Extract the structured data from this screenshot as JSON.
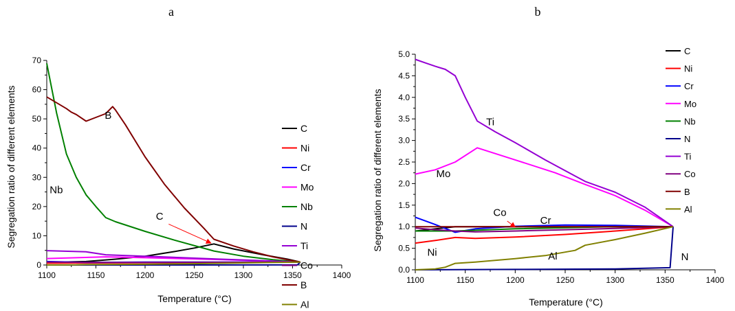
{
  "chart_data": [
    {
      "type": "line",
      "panel_label": "a",
      "xlabel": "Temperature (°C)",
      "ylabel": "Segregation ratio of different elements",
      "xlim": [
        1100,
        1400
      ],
      "ylim": [
        0,
        70
      ],
      "xticks": [
        1100,
        1150,
        1200,
        1250,
        1300,
        1350,
        1400
      ],
      "yticks": [
        0,
        10,
        20,
        30,
        40,
        50,
        60,
        70
      ],
      "legend_position": "right",
      "series": [
        {
          "name": "C",
          "color": "#000000",
          "points": [
            [
              1100,
              0.9
            ],
            [
              1140,
              1.2
            ],
            [
              1170,
              2.0
            ],
            [
              1200,
              3.0
            ],
            [
              1230,
              4.6
            ],
            [
              1250,
              5.8
            ],
            [
              1270,
              7.2
            ],
            [
              1290,
              5.5
            ],
            [
              1320,
              3.5
            ],
            [
              1345,
              2.0
            ],
            [
              1358,
              1.0
            ]
          ]
        },
        {
          "name": "Ni",
          "color": "#ff0000",
          "points": [
            [
              1100,
              0.6
            ],
            [
              1140,
              0.7
            ],
            [
              1200,
              0.8
            ],
            [
              1260,
              0.9
            ],
            [
              1358,
              1.0
            ]
          ]
        },
        {
          "name": "Cr",
          "color": "#0000ff",
          "points": [
            [
              1100,
              1.2
            ],
            [
              1140,
              0.9
            ],
            [
              1200,
              1.0
            ],
            [
              1260,
              1.0
            ],
            [
              1358,
              1.0
            ]
          ]
        },
        {
          "name": "Mo",
          "color": "#ff00ff",
          "points": [
            [
              1100,
              2.2
            ],
            [
              1160,
              2.8
            ],
            [
              1200,
              2.5
            ],
            [
              1270,
              1.9
            ],
            [
              1358,
              1.0
            ]
          ]
        },
        {
          "name": "Nb",
          "color": "#008000",
          "points": [
            [
              1100,
              69
            ],
            [
              1110,
              52
            ],
            [
              1120,
              38
            ],
            [
              1130,
              30
            ],
            [
              1140,
              24
            ],
            [
              1150,
              20
            ],
            [
              1160,
              16.2
            ],
            [
              1170,
              14.8
            ],
            [
              1200,
              11.5
            ],
            [
              1230,
              8.5
            ],
            [
              1270,
              4.8
            ],
            [
              1300,
              3.0
            ],
            [
              1330,
              1.8
            ],
            [
              1358,
              1.0
            ]
          ]
        },
        {
          "name": "N",
          "color": "#00008b",
          "points": [
            [
              1100,
              0.0
            ],
            [
              1200,
              0.01
            ],
            [
              1300,
              0.02
            ],
            [
              1355,
              0.05
            ],
            [
              1358,
              1.0
            ]
          ]
        },
        {
          "name": "Ti",
          "color": "#9400d3",
          "points": [
            [
              1100,
              4.9
            ],
            [
              1140,
              4.5
            ],
            [
              1160,
              3.5
            ],
            [
              1200,
              3.0
            ],
            [
              1270,
              2.1
            ],
            [
              1320,
              1.5
            ],
            [
              1358,
              1.0
            ]
          ]
        },
        {
          "name": "Co",
          "color": "#800080",
          "points": [
            [
              1100,
              1.0
            ],
            [
              1140,
              0.9
            ],
            [
              1200,
              0.9
            ],
            [
              1270,
              0.95
            ],
            [
              1358,
              1.0
            ]
          ]
        },
        {
          "name": "B",
          "color": "#800000",
          "points": [
            [
              1100,
              57.5
            ],
            [
              1110,
              55.5
            ],
            [
              1120,
              53.5
            ],
            [
              1125,
              52.3
            ],
            [
              1130,
              51.5
            ],
            [
              1140,
              49.2
            ],
            [
              1150,
              50.5
            ],
            [
              1160,
              51.8
            ],
            [
              1167,
              54.2
            ],
            [
              1170,
              53.0
            ],
            [
              1180,
              48.0
            ],
            [
              1200,
              37.0
            ],
            [
              1220,
              27.5
            ],
            [
              1240,
              19.5
            ],
            [
              1260,
              12.5
            ],
            [
              1270,
              8.8
            ],
            [
              1290,
              6.5
            ],
            [
              1310,
              4.5
            ],
            [
              1330,
              2.8
            ],
            [
              1345,
              1.8
            ],
            [
              1358,
              1.0
            ]
          ]
        },
        {
          "name": "Al",
          "color": "#808000",
          "points": [
            [
              1100,
              0.0
            ],
            [
              1130,
              0.05
            ],
            [
              1140,
              0.15
            ],
            [
              1200,
              0.25
            ],
            [
              1250,
              0.45
            ],
            [
              1270,
              0.57
            ],
            [
              1358,
              1.0
            ]
          ]
        }
      ],
      "annotations": [
        {
          "text": "B",
          "x": 1159,
          "y": 50
        },
        {
          "text": "Nb",
          "x": 1103,
          "y": 24.5
        },
        {
          "text": "C",
          "x": 1211,
          "y": 15.5
        }
      ],
      "arrows": [
        {
          "from": [
            1224,
            14
          ],
          "to": [
            1267,
            7.5
          ],
          "color": "#ff0000"
        }
      ]
    },
    {
      "type": "line",
      "panel_label": "b",
      "xlabel": "Temperature (°C)",
      "ylabel": "Segregation ratio of different elements",
      "xlim": [
        1100,
        1400
      ],
      "ylim": [
        0,
        5.0
      ],
      "xticks": [
        1100,
        1150,
        1200,
        1250,
        1300,
        1350,
        1400
      ],
      "yticks": [
        0.0,
        0.5,
        1.0,
        1.5,
        2.0,
        2.5,
        3.0,
        3.5,
        4.0,
        4.5,
        5.0
      ],
      "legend_position": "right",
      "series": [
        {
          "name": "C",
          "color": "#000000",
          "points": [
            [
              1100,
              0.9
            ],
            [
              1140,
              1.0
            ],
            [
              1200,
              1.0
            ],
            [
              1300,
              1.0
            ],
            [
              1358,
              1.0
            ]
          ]
        },
        {
          "name": "Ni",
          "color": "#ff0000",
          "points": [
            [
              1100,
              0.62
            ],
            [
              1120,
              0.68
            ],
            [
              1140,
              0.75
            ],
            [
              1160,
              0.73
            ],
            [
              1200,
              0.76
            ],
            [
              1250,
              0.82
            ],
            [
              1300,
              0.9
            ],
            [
              1358,
              1.0
            ]
          ]
        },
        {
          "name": "Cr",
          "color": "#0000ff",
          "points": [
            [
              1100,
              1.22
            ],
            [
              1120,
              1.05
            ],
            [
              1140,
              0.87
            ],
            [
              1160,
              0.95
            ],
            [
              1200,
              1.01
            ],
            [
              1250,
              1.04
            ],
            [
              1300,
              1.03
            ],
            [
              1358,
              1.0
            ]
          ]
        },
        {
          "name": "Mo",
          "color": "#ff00ff",
          "points": [
            [
              1100,
              2.22
            ],
            [
              1120,
              2.32
            ],
            [
              1140,
              2.5
            ],
            [
              1162,
              2.83
            ],
            [
              1200,
              2.55
            ],
            [
              1240,
              2.25
            ],
            [
              1270,
              1.98
            ],
            [
              1300,
              1.72
            ],
            [
              1330,
              1.38
            ],
            [
              1358,
              1.0
            ]
          ]
        },
        {
          "name": "Nb",
          "color": "#008000",
          "points": [
            [
              1100,
              0.9
            ],
            [
              1140,
              0.9
            ],
            [
              1200,
              0.95
            ],
            [
              1300,
              1.0
            ],
            [
              1358,
              1.0
            ]
          ]
        },
        {
          "name": "N",
          "color": "#00008b",
          "points": [
            [
              1100,
              0.0
            ],
            [
              1200,
              0.01
            ],
            [
              1300,
              0.02
            ],
            [
              1355,
              0.05
            ],
            [
              1358,
              1.0
            ]
          ]
        },
        {
          "name": "Ti",
          "color": "#9400d3",
          "points": [
            [
              1100,
              4.88
            ],
            [
              1110,
              4.8
            ],
            [
              1120,
              4.72
            ],
            [
              1130,
              4.65
            ],
            [
              1140,
              4.5
            ],
            [
              1150,
              4.0
            ],
            [
              1162,
              3.45
            ],
            [
              1180,
              3.2
            ],
            [
              1200,
              2.95
            ],
            [
              1230,
              2.55
            ],
            [
              1270,
              2.05
            ],
            [
              1300,
              1.8
            ],
            [
              1330,
              1.45
            ],
            [
              1358,
              1.0
            ]
          ]
        },
        {
          "name": "Co",
          "color": "#800080",
          "points": [
            [
              1100,
              0.97
            ],
            [
              1120,
              0.93
            ],
            [
              1140,
              0.9
            ],
            [
              1160,
              0.88
            ],
            [
              1200,
              0.9
            ],
            [
              1250,
              0.93
            ],
            [
              1300,
              0.96
            ],
            [
              1358,
              1.0
            ]
          ]
        },
        {
          "name": "B",
          "color": "#800000",
          "points": [
            [
              1100,
              1.0
            ],
            [
              1200,
              1.0
            ],
            [
              1300,
              1.0
            ],
            [
              1358,
              1.0
            ]
          ]
        },
        {
          "name": "Al",
          "color": "#808000",
          "points": [
            [
              1100,
              0.0
            ],
            [
              1120,
              0.02
            ],
            [
              1130,
              0.06
            ],
            [
              1140,
              0.15
            ],
            [
              1160,
              0.18
            ],
            [
              1200,
              0.26
            ],
            [
              1230,
              0.33
            ],
            [
              1260,
              0.45
            ],
            [
              1270,
              0.57
            ],
            [
              1300,
              0.7
            ],
            [
              1330,
              0.85
            ],
            [
              1358,
              1.0
            ]
          ]
        }
      ],
      "annotations": [
        {
          "text": "Ti",
          "x": 1171,
          "y": 3.35
        },
        {
          "text": "Mo",
          "x": 1121,
          "y": 2.15
        },
        {
          "text": "Co",
          "x": 1178,
          "y": 1.25
        },
        {
          "text": "Cr",
          "x": 1225,
          "y": 1.07
        },
        {
          "text": "Ni",
          "x": 1112,
          "y": 0.33
        },
        {
          "text": "Al",
          "x": 1233,
          "y": 0.24
        },
        {
          "text": "N",
          "x": 1366,
          "y": 0.22
        }
      ],
      "arrows": [
        {
          "from": [
            1192,
            1.13
          ],
          "to": [
            1200,
            0.99
          ],
          "color": "#ff0000"
        }
      ]
    }
  ]
}
